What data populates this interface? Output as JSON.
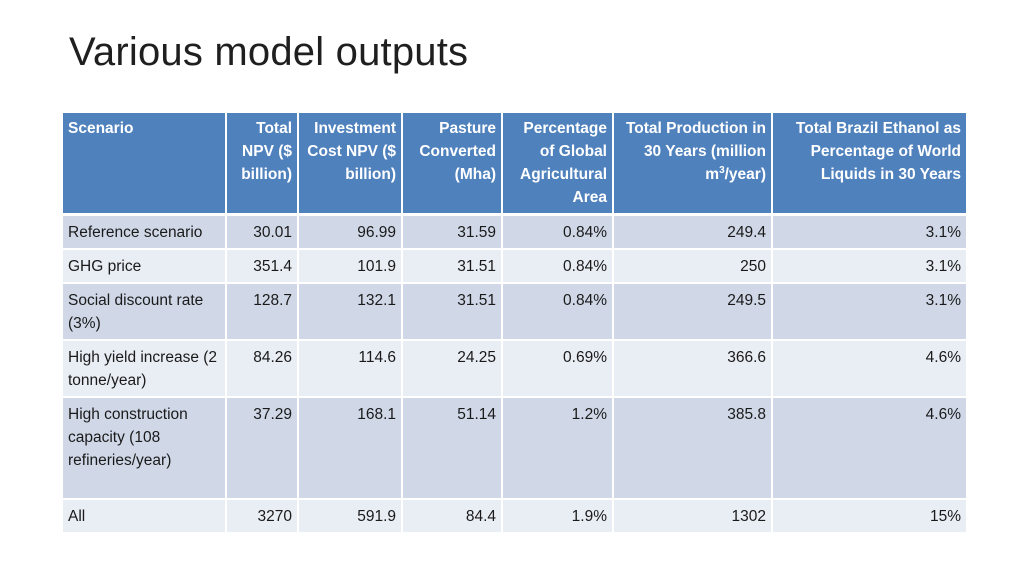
{
  "title": "Various model outputs",
  "table": {
    "headers": [
      "Scenario",
      "Total NPV ($ billion)",
      "Investment Cost NPV ($ billion)",
      "Pasture Converted (Mha)",
      "Percentage of Global Agricultural Area",
      "Total Production in 30 Years (million m³/year)",
      "Total Brazil Ethanol as Percentage of World Liquids in 30 Years"
    ],
    "rows": [
      [
        "Reference scenario",
        "30.01",
        "96.99",
        "31.59",
        "0.84%",
        "249.4",
        "3.1%"
      ],
      [
        "GHG price",
        "351.4",
        "101.9",
        "31.51",
        "0.84%",
        "250",
        "3.1%"
      ],
      [
        "Social discount rate (3%)",
        "128.7",
        "132.1",
        "31.51",
        "0.84%",
        "249.5",
        "3.1%"
      ],
      [
        "High yield increase (2 tonne/year)",
        "84.26",
        "114.6",
        "24.25",
        "0.69%",
        "366.6",
        "4.6%"
      ],
      [
        "High construction capacity (108 refineries/year)",
        "37.29",
        "168.1",
        "51.14",
        "1.2%",
        "385.8",
        "4.6%"
      ],
      [
        "All",
        "3270",
        "591.9",
        "84.4",
        "1.9%",
        "1302",
        "15%"
      ]
    ]
  },
  "colors": {
    "header_bg": "#4f81bd",
    "row_odd": "#d0d8e8",
    "row_even": "#e9edf4"
  }
}
